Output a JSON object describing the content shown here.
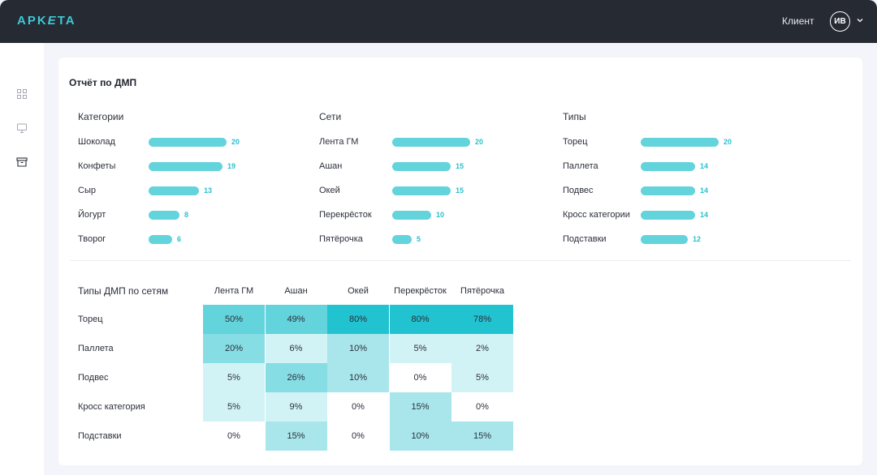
{
  "header": {
    "logo": {
      "left": "APK",
      "mid": "E",
      "right": "TA"
    },
    "client_label": "Клиент",
    "avatar_initials": "ИВ",
    "colors": {
      "bg": "#262a33",
      "accent": "#3ec9d6"
    }
  },
  "sidebar": {
    "icons": [
      "grid-icon",
      "monitor-icon",
      "archive-icon"
    ]
  },
  "report": {
    "title": "Отчёт по ДМП",
    "columns": [
      {
        "title": "Категории",
        "max": 20,
        "items": [
          {
            "label": "Шоколад",
            "value": 20
          },
          {
            "label": "Конфеты",
            "value": 19
          },
          {
            "label": "Сыр",
            "value": 13
          },
          {
            "label": "Йогурт",
            "value": 8
          },
          {
            "label": "Творог",
            "value": 6
          }
        ]
      },
      {
        "title": "Сети",
        "max": 20,
        "items": [
          {
            "label": "Лента ГМ",
            "value": 20
          },
          {
            "label": "Ашан",
            "value": 15
          },
          {
            "label": "Окей",
            "value": 15
          },
          {
            "label": "Перекрёсток",
            "value": 10
          },
          {
            "label": "Пятёрочка",
            "value": 5
          }
        ]
      },
      {
        "title": "Типы",
        "max": 20,
        "items": [
          {
            "label": "Торец",
            "value": 20
          },
          {
            "label": "Паллета",
            "value": 14
          },
          {
            "label": "Подвес",
            "value": 14
          },
          {
            "label": "Кросс категории",
            "value": 14
          },
          {
            "label": "Подставки",
            "value": 12
          }
        ]
      }
    ],
    "heatmap": {
      "title": "Типы ДМП по сетям",
      "columns": [
        "Лента ГМ",
        "Ашан",
        "Окей",
        "Перекрёсток",
        "Пятёрочка"
      ],
      "rows": [
        {
          "label": "Торец",
          "values": [
            50,
            49,
            80,
            80,
            78
          ]
        },
        {
          "label": "Паллета",
          "values": [
            20,
            6,
            10,
            5,
            2
          ]
        },
        {
          "label": "Подвес",
          "values": [
            5,
            26,
            10,
            0,
            5
          ]
        },
        {
          "label": "Кросс категория",
          "values": [
            5,
            9,
            0,
            15,
            0
          ]
        },
        {
          "label": "Подставки",
          "values": [
            0,
            15,
            0,
            10,
            15
          ]
        }
      ],
      "cell_colors": [
        [
          "#63d3dc",
          "#63d3dc",
          "#21c3d0",
          "#21c3d0",
          "#21c3d0"
        ],
        [
          "#86dde4",
          "#d2f3f5",
          "#a8e6eb",
          "#d2f3f5",
          "#d2f3f5"
        ],
        [
          "#d2f3f5",
          "#86dde4",
          "#a8e6eb",
          "#ffffff",
          "#d2f3f5"
        ],
        [
          "#d2f3f5",
          "#d2f3f5",
          "#ffffff",
          "#a8e6eb",
          "#ffffff"
        ],
        [
          "#ffffff",
          "#a8e6eb",
          "#ffffff",
          "#a8e6eb",
          "#a8e6eb"
        ]
      ]
    }
  }
}
